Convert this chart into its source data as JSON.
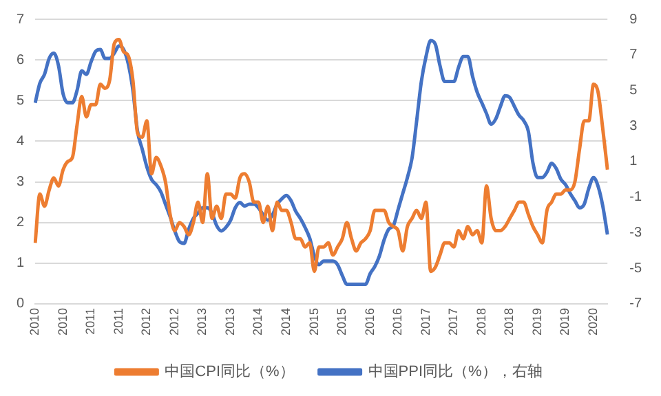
{
  "chart_data": {
    "type": "line",
    "categories": [
      "2010",
      null,
      null,
      null,
      null,
      null,
      "2010",
      null,
      null,
      null,
      null,
      null,
      "2011",
      null,
      null,
      null,
      null,
      null,
      "2011",
      null,
      null,
      null,
      null,
      null,
      "2012",
      null,
      null,
      null,
      null,
      null,
      "2012",
      null,
      null,
      null,
      null,
      null,
      "2013",
      null,
      null,
      null,
      null,
      null,
      "2013",
      null,
      null,
      null,
      null,
      null,
      "2014",
      null,
      null,
      null,
      null,
      null,
      "2014",
      null,
      null,
      null,
      null,
      null,
      "2015",
      null,
      null,
      null,
      null,
      null,
      "2015",
      null,
      null,
      null,
      null,
      null,
      "2016",
      null,
      null,
      null,
      null,
      null,
      "2016",
      null,
      null,
      null,
      null,
      null,
      "2017",
      null,
      null,
      null,
      null,
      null,
      "2017",
      null,
      null,
      null,
      null,
      null,
      "2018",
      null,
      null,
      null,
      null,
      null,
      "2018",
      null,
      null,
      null,
      null,
      null,
      "2019",
      null,
      null,
      null,
      null,
      null,
      "2019",
      null,
      null,
      null,
      null,
      null,
      "2020",
      null,
      null,
      null
    ],
    "series": [
      {
        "name": "中国CPI同比（%）",
        "color": "#ed7d31",
        "values": [
          1.5,
          2.7,
          2.4,
          2.8,
          3.1,
          2.9,
          3.3,
          3.5,
          3.6,
          4.4,
          5.1,
          4.6,
          4.9,
          4.9,
          5.4,
          5.3,
          5.5,
          6.4,
          6.5,
          6.2,
          6.1,
          5.5,
          4.2,
          4.1,
          4.5,
          3.2,
          3.6,
          3.4,
          3.0,
          2.2,
          1.8,
          2.0,
          1.9,
          1.7,
          2.0,
          2.5,
          2.0,
          3.2,
          2.1,
          2.4,
          2.1,
          2.7,
          2.7,
          2.6,
          3.1,
          3.2,
          3.0,
          2.5,
          2.5,
          2.0,
          2.4,
          1.8,
          2.5,
          2.3,
          2.3,
          2.0,
          1.6,
          1.6,
          1.4,
          1.5,
          0.8,
          1.4,
          1.4,
          1.5,
          1.2,
          1.4,
          1.6,
          2.0,
          1.6,
          1.3,
          1.5,
          1.6,
          1.8,
          2.3,
          2.3,
          2.3,
          2.0,
          1.9,
          1.8,
          1.3,
          1.9,
          2.1,
          2.3,
          2.1,
          2.5,
          0.8,
          0.9,
          1.2,
          1.5,
          1.5,
          1.4,
          1.8,
          1.6,
          1.9,
          1.7,
          1.8,
          1.5,
          2.9,
          2.1,
          1.8,
          1.8,
          1.9,
          2.1,
          2.3,
          2.5,
          2.5,
          2.2,
          1.9,
          1.7,
          1.5,
          2.3,
          2.5,
          2.7,
          2.7,
          2.8,
          2.8,
          3.0,
          3.8,
          4.5,
          4.5,
          5.4,
          5.2,
          4.3,
          3.3
        ]
      },
      {
        "name": "中国PPI同比（%），右轴",
        "color": "#4472c4",
        "axis": "y2",
        "values": [
          4.3,
          5.4,
          5.9,
          6.8,
          7.1,
          6.4,
          4.8,
          4.3,
          4.3,
          5.0,
          6.1,
          5.9,
          6.6,
          7.2,
          7.3,
          6.8,
          6.8,
          7.1,
          7.5,
          7.3,
          6.5,
          5.0,
          2.7,
          1.7,
          0.7,
          0.0,
          -0.3,
          -0.7,
          -1.4,
          -2.1,
          -2.9,
          -3.5,
          -3.6,
          -2.8,
          -2.2,
          -1.9,
          -1.6,
          -1.6,
          -1.9,
          -2.6,
          -2.9,
          -2.7,
          -2.3,
          -1.6,
          -1.3,
          -1.5,
          -1.4,
          -1.4,
          -1.6,
          -2.0,
          -2.3,
          -2.0,
          -1.4,
          -1.1,
          -0.9,
          -1.2,
          -1.8,
          -2.2,
          -2.7,
          -3.3,
          -4.3,
          -4.8,
          -4.6,
          -4.6,
          -4.6,
          -4.8,
          -5.4,
          -5.9,
          -5.9,
          -5.9,
          -5.9,
          -5.9,
          -5.3,
          -4.9,
          -4.3,
          -3.4,
          -2.8,
          -2.6,
          -1.7,
          -0.8,
          0.1,
          1.2,
          3.3,
          5.5,
          6.9,
          7.8,
          7.6,
          6.4,
          5.5,
          5.5,
          5.5,
          6.3,
          6.9,
          6.9,
          5.8,
          4.9,
          4.3,
          3.7,
          3.1,
          3.4,
          4.1,
          4.7,
          4.6,
          4.1,
          3.6,
          3.3,
          2.7,
          0.9,
          0.1,
          0.1,
          0.4,
          0.9,
          0.6,
          0.0,
          -0.3,
          -0.8,
          -1.2,
          -1.6,
          -1.4,
          -0.5,
          0.1,
          -0.4,
          -1.5,
          -3.1
        ]
      }
    ],
    "ylim": [
      0,
      7
    ],
    "yticks": [
      0,
      1,
      2,
      3,
      4,
      5,
      6,
      7
    ],
    "y2lim": [
      -7,
      9
    ],
    "y2ticks": [
      -7,
      -5,
      -3,
      -1,
      1,
      3,
      5,
      7,
      9
    ],
    "grid": "y",
    "legend": "bottom",
    "marker": "none",
    "line_style": "solid"
  }
}
